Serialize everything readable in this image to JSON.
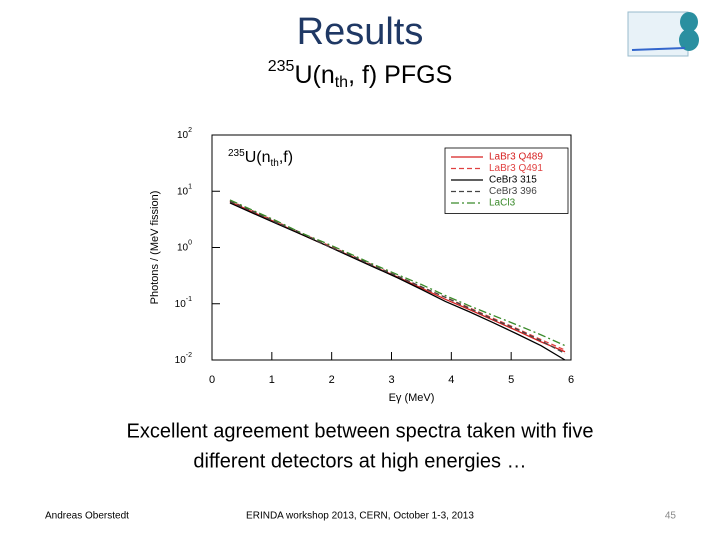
{
  "slide": {
    "title": "Results",
    "subtitle": {
      "mass": "235",
      "element": "U(n",
      "sub": "th",
      "rest": ", f) PFGS"
    },
    "caption": [
      "Excellent agreement between spectra taken with five",
      "different detectors at high energies …"
    ],
    "footer": {
      "author": "Andreas Oberstedt",
      "event": "ERINDA workshop 2013, CERN, October 1-3, 2013",
      "page": "45"
    }
  },
  "chart_data": {
    "type": "line",
    "annotation": {
      "mass": "235",
      "element": "U(n",
      "sub": "th",
      "rest": ",f)"
    },
    "x_label": "Eγ (MeV)",
    "y_label": "Photons / (MeV fission)",
    "x": [
      0.3,
      0.7,
      1.1,
      1.5,
      1.9,
      2.3,
      2.7,
      3.1,
      3.5,
      3.9,
      4.3,
      4.7,
      5.1,
      5.5,
      5.9
    ],
    "series": [
      {
        "name": "LaBr3 Q489",
        "color": "#d62020",
        "dash": "",
        "values": [
          6.5,
          4.2,
          2.7,
          1.7,
          1.1,
          0.72,
          0.46,
          0.3,
          0.19,
          0.12,
          0.079,
          0.051,
          0.033,
          0.021,
          0.014
        ]
      },
      {
        "name": "LaBr3 Q491",
        "color": "#e04040",
        "dash": "5 3",
        "values": [
          6.8,
          4.4,
          2.8,
          1.8,
          1.15,
          0.75,
          0.48,
          0.31,
          0.2,
          0.13,
          0.085,
          0.055,
          0.036,
          0.023,
          0.015
        ]
      },
      {
        "name": "CeBr3 315",
        "color": "#000000",
        "dash": "",
        "values": [
          6.2,
          4.0,
          2.6,
          1.7,
          1.1,
          0.7,
          0.45,
          0.29,
          0.18,
          0.11,
          0.072,
          0.046,
          0.029,
          0.018,
          0.01
        ]
      },
      {
        "name": "CeBr3 396",
        "color": "#444444",
        "dash": "5 3",
        "values": [
          6.6,
          4.3,
          2.7,
          1.8,
          1.1,
          0.74,
          0.47,
          0.31,
          0.2,
          0.13,
          0.083,
          0.053,
          0.035,
          0.022,
          0.013
        ]
      },
      {
        "name": "LaCl3",
        "color": "#3a8a2a",
        "dash": "8 3 2 3",
        "values": [
          7.0,
          4.5,
          2.9,
          1.8,
          1.2,
          0.78,
          0.5,
          0.33,
          0.22,
          0.14,
          0.092,
          0.062,
          0.042,
          0.028,
          0.018
        ]
      }
    ],
    "xlim": [
      0,
      6
    ],
    "xticks": [
      0,
      1,
      2,
      3,
      4,
      5,
      6
    ],
    "ylim": [
      0.01,
      100
    ],
    "log_y": true,
    "yticks": [
      {
        "value": 100,
        "label": "10",
        "exponent": "2"
      },
      {
        "value": 10,
        "label": "10",
        "exponent": "1"
      },
      {
        "value": 1,
        "label": "10",
        "exponent": "0"
      },
      {
        "value": 0.1,
        "label": "10",
        "exponent": "-1"
      },
      {
        "value": 0.01,
        "label": "10",
        "exponent": "-2"
      }
    ],
    "legend": "upper right"
  }
}
